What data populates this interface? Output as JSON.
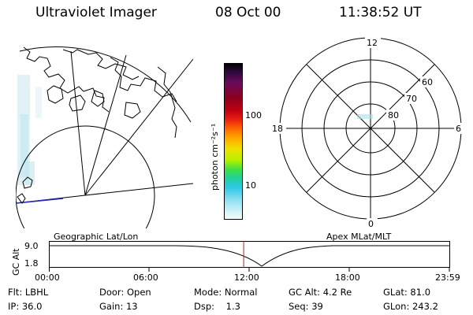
{
  "header": {
    "instrument": "Ultraviolet Imager",
    "date": "08 Oct 00",
    "time": "11:38:52 UT"
  },
  "geo_panel": {
    "label": "Geographic Lat/Lon"
  },
  "colorbar": {
    "unit_label": "photon cm⁻²s⁻¹",
    "ticks": [
      "100",
      "10"
    ],
    "colors": [
      "#000000",
      "#2a0a3a",
      "#6a0a5a",
      "#8b0020",
      "#c00010",
      "#e82010",
      "#ff6a00",
      "#ffa800",
      "#f0e000",
      "#b8f000",
      "#40e040",
      "#20d0a0",
      "#30c8e8",
      "#90e0f0",
      "#d8f4f8"
    ]
  },
  "polar_panel": {
    "label": "Apex MLat/MLT",
    "mlt_labels": {
      "top": "12",
      "left": "18",
      "right": "6",
      "bottom": "0"
    },
    "lat_labels": [
      "60",
      "70",
      "80"
    ]
  },
  "altitude_plot": {
    "ylabel": "GC Alt",
    "yticks": [
      "9.0",
      "1.8"
    ],
    "xticks": [
      "00:00",
      "06:00",
      "12:00",
      "18:00",
      "23:59"
    ],
    "current_marker_hour": 11.65
  },
  "status": {
    "filter": {
      "label": "Flt:",
      "value": "LBHL"
    },
    "ip": {
      "label": "IP:",
      "value": "36.0"
    },
    "door": {
      "label": "Door:",
      "value": "Open"
    },
    "gain": {
      "label": "Gain:",
      "value": "13"
    },
    "mode": {
      "label": "Mode:",
      "value": "Normal"
    },
    "dsp": {
      "label": "Dsp:",
      "value": "1.3"
    },
    "gc_alt": {
      "label": "GC Alt:",
      "value": "4.2 Re"
    },
    "seq": {
      "label": "Seq:",
      "value": "39"
    },
    "glat": {
      "label": "GLat:",
      "value": "81.0"
    },
    "glon": {
      "label": "GLon:",
      "value": "243.2"
    }
  }
}
